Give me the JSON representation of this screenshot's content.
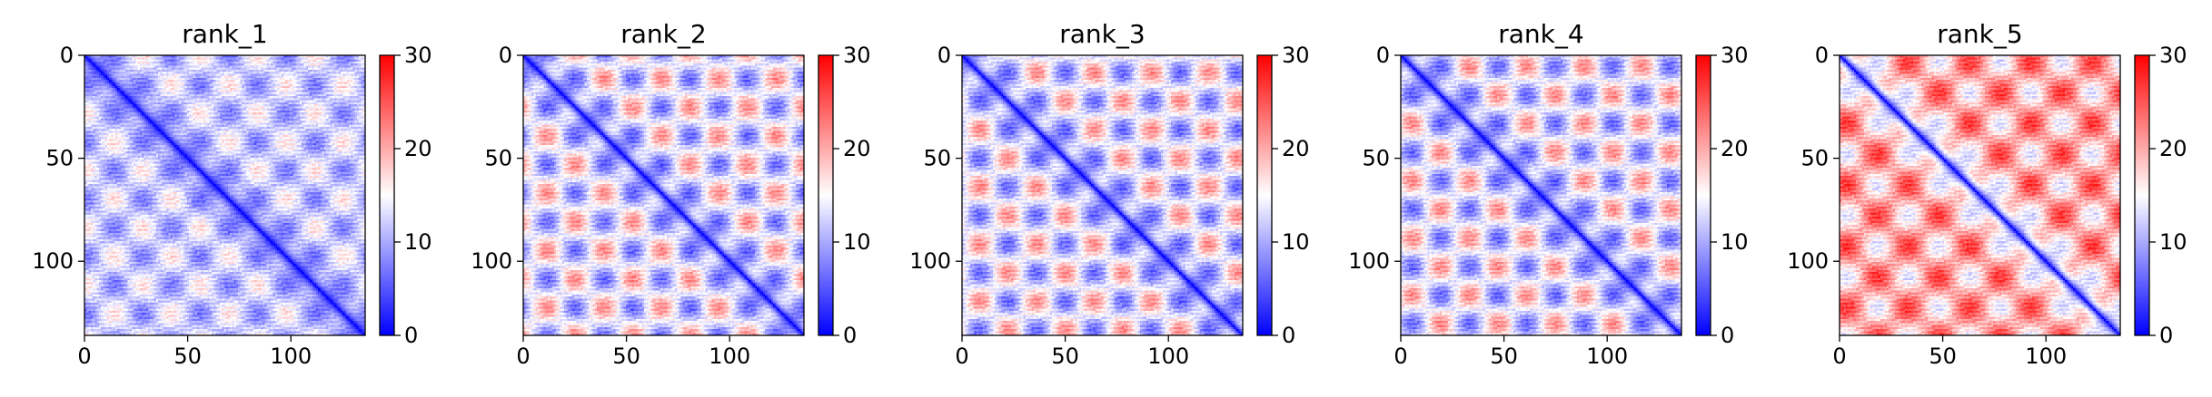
{
  "figure": {
    "background": "#ffffff"
  },
  "colormap": {
    "name": "bwr",
    "low": "#0000ff",
    "mid": "#ffffff",
    "high": "#ff0000"
  },
  "chart_data": [
    {
      "type": "heatmap",
      "title": "rank_1",
      "size": 137,
      "xlim": [
        0,
        136
      ],
      "ylim": [
        0,
        136
      ],
      "x_ticks": [
        0,
        50,
        100
      ],
      "y_ticks": [
        0,
        50,
        100
      ],
      "x_tick_labels": [
        "0",
        "50",
        "100"
      ],
      "y_tick_labels": [
        "0",
        "50",
        "100"
      ],
      "colorbar": {
        "min": 0,
        "max": 30,
        "ticks": [
          0,
          10,
          20,
          30
        ],
        "tick_labels": [
          "0",
          "10",
          "20",
          "30"
        ]
      },
      "diagonal_value": 0,
      "mean_value": 12,
      "contrast": 5,
      "pattern_period": 28,
      "pattern_phase": 0
    },
    {
      "type": "heatmap",
      "title": "rank_2",
      "size": 137,
      "xlim": [
        0,
        136
      ],
      "ylim": [
        0,
        136
      ],
      "x_ticks": [
        0,
        50,
        100
      ],
      "y_ticks": [
        0,
        50,
        100
      ],
      "x_tick_labels": [
        "0",
        "50",
        "100"
      ],
      "y_tick_labels": [
        "0",
        "50",
        "100"
      ],
      "colorbar": {
        "min": 0,
        "max": 30,
        "ticks": [
          0,
          10,
          20,
          30
        ],
        "tick_labels": [
          "0",
          "10",
          "20",
          "30"
        ]
      },
      "diagonal_value": 0,
      "mean_value": 14,
      "contrast": 8,
      "pattern_period": 28,
      "pattern_phase": 1
    },
    {
      "type": "heatmap",
      "title": "rank_3",
      "size": 137,
      "xlim": [
        0,
        136
      ],
      "ylim": [
        0,
        136
      ],
      "x_ticks": [
        0,
        50,
        100
      ],
      "y_ticks": [
        0,
        50,
        100
      ],
      "x_tick_labels": [
        "0",
        "50",
        "100"
      ],
      "y_tick_labels": [
        "0",
        "50",
        "100"
      ],
      "colorbar": {
        "min": 0,
        "max": 30,
        "ticks": [
          0,
          10,
          20,
          30
        ],
        "tick_labels": [
          "0",
          "10",
          "20",
          "30"
        ]
      },
      "diagonal_value": 0,
      "mean_value": 14,
      "contrast": 8,
      "pattern_period": 28,
      "pattern_phase": 2
    },
    {
      "type": "heatmap",
      "title": "rank_4",
      "size": 137,
      "xlim": [
        0,
        136
      ],
      "ylim": [
        0,
        136
      ],
      "x_ticks": [
        0,
        50,
        100
      ],
      "y_ticks": [
        0,
        50,
        100
      ],
      "x_tick_labels": [
        "0",
        "50",
        "100"
      ],
      "y_tick_labels": [
        "0",
        "50",
        "100"
      ],
      "colorbar": {
        "min": 0,
        "max": 30,
        "ticks": [
          0,
          10,
          20,
          30
        ],
        "tick_labels": [
          "0",
          "10",
          "20",
          "30"
        ]
      },
      "diagonal_value": 0,
      "mean_value": 14,
      "contrast": 8,
      "pattern_period": 28,
      "pattern_phase": 3
    },
    {
      "type": "heatmap",
      "title": "rank_5",
      "size": 137,
      "xlim": [
        0,
        136
      ],
      "ylim": [
        0,
        136
      ],
      "x_ticks": [
        0,
        50,
        100
      ],
      "y_ticks": [
        0,
        50,
        100
      ],
      "x_tick_labels": [
        "0",
        "50",
        "100"
      ],
      "y_tick_labels": [
        "0",
        "50",
        "100"
      ],
      "colorbar": {
        "min": 0,
        "max": 30,
        "ticks": [
          0,
          10,
          20,
          30
        ],
        "tick_labels": [
          "0",
          "10",
          "20",
          "30"
        ]
      },
      "diagonal_value": 0,
      "mean_value": 20,
      "contrast": 7,
      "pattern_period": 30,
      "pattern_phase": 4
    }
  ]
}
